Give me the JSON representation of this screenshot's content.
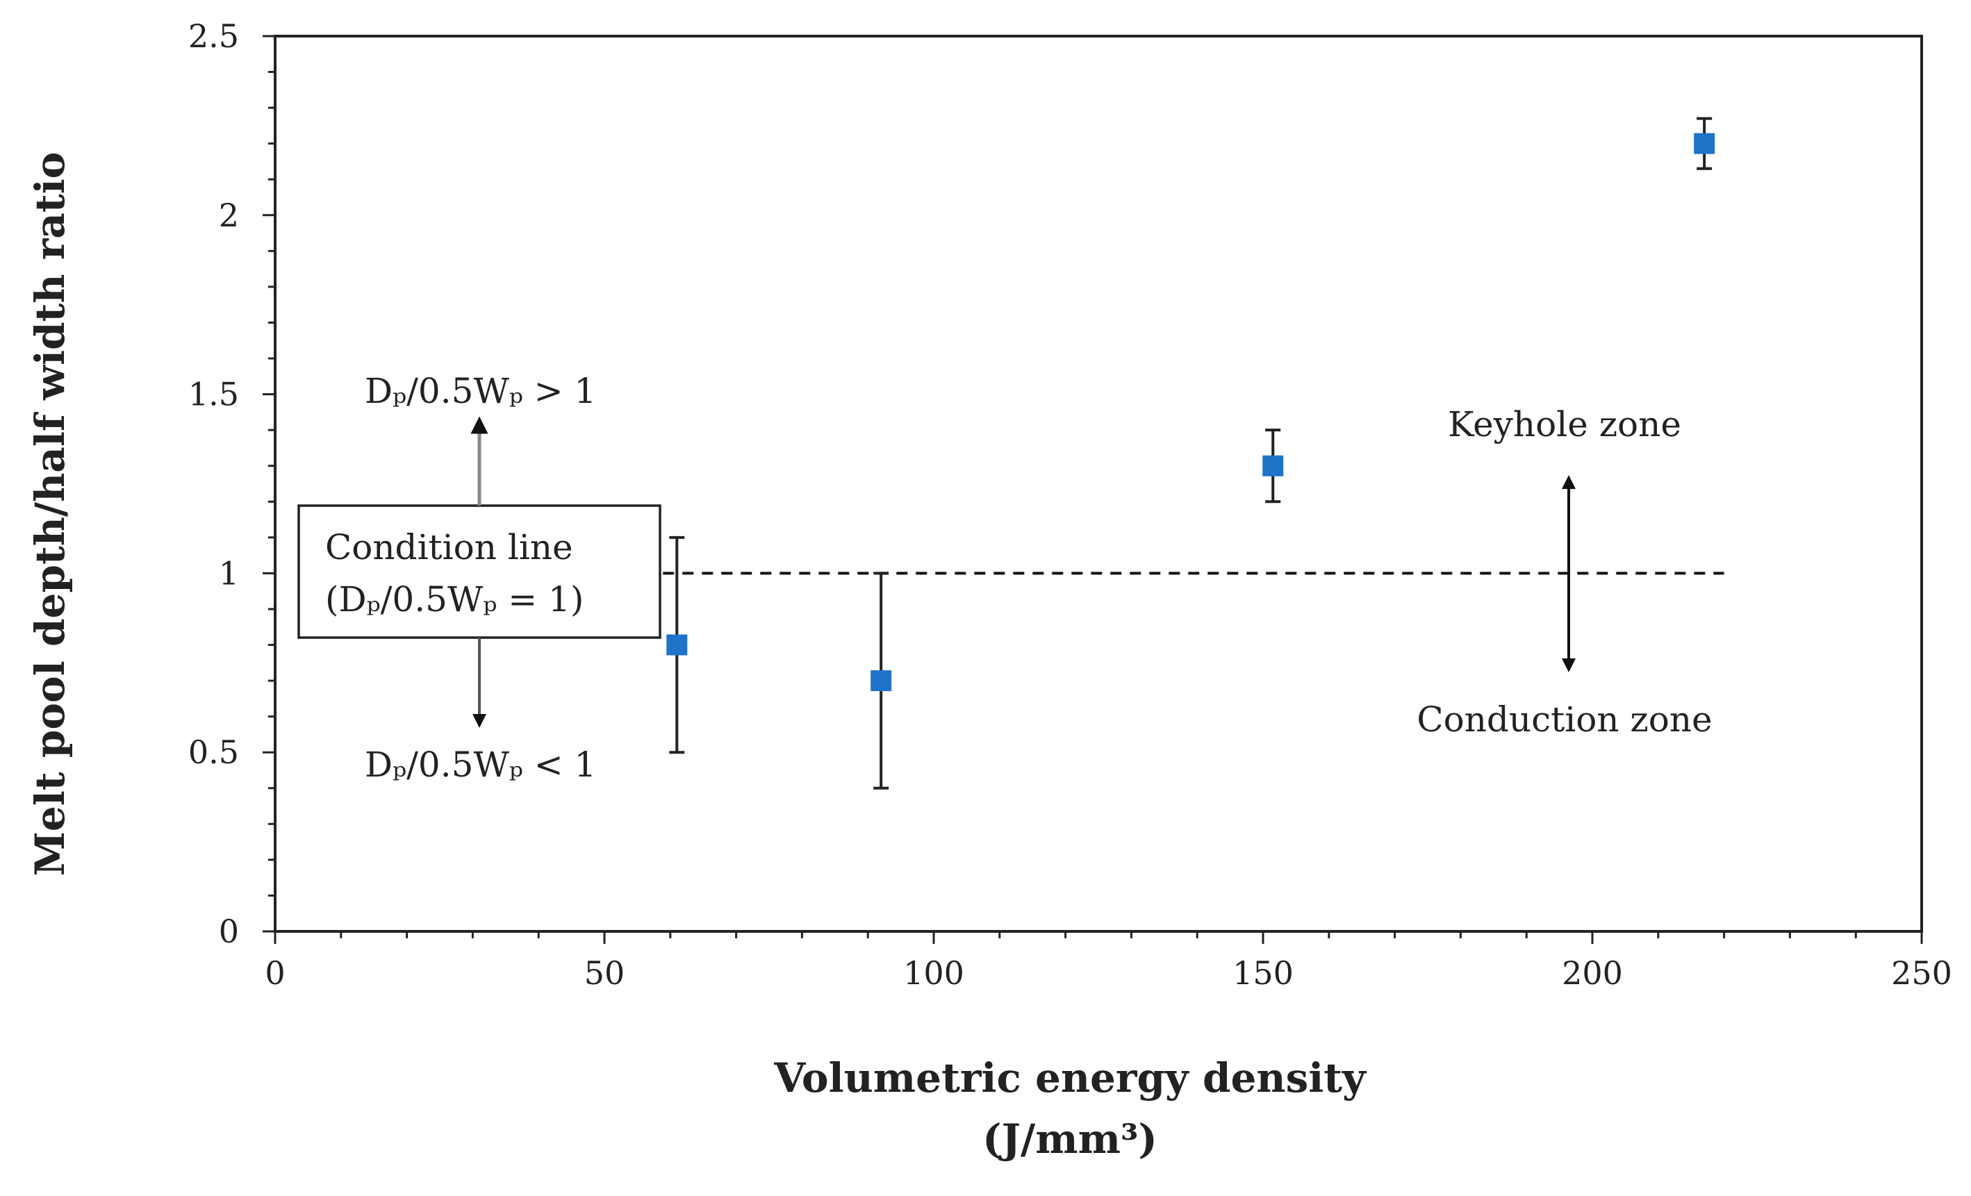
{
  "chart_data": {
    "type": "scatter",
    "title": "",
    "xlabel": "Volumetric energy density",
    "xlabel_unit": "(J/mm³)",
    "ylabel": "Melt pool depth/half width ratio",
    "xlim": [
      0,
      250
    ],
    "ylim": [
      0,
      2.5
    ],
    "xticks": [
      0,
      50,
      100,
      150,
      200,
      250
    ],
    "yticks": [
      0,
      0.5,
      1,
      1.5,
      2,
      2.5
    ],
    "xtick_labels": [
      "0",
      "50",
      "100",
      "150",
      "200",
      "250"
    ],
    "ytick_labels": [
      "0",
      "0.5",
      "1",
      "1.5",
      "2",
      "2.5"
    ],
    "grid": false,
    "series": [
      {
        "name": "Melt pool depth/half width ratio",
        "color": "#1f73c9",
        "points": [
          {
            "x": 61,
            "y": 0.8,
            "err_low": 0.5,
            "err_high": 1.1
          },
          {
            "x": 92,
            "y": 0.7,
            "err_low": 0.4,
            "err_high": 1.0
          },
          {
            "x": 151.5,
            "y": 1.3,
            "err_low": 1.2,
            "err_high": 1.4
          },
          {
            "x": 217,
            "y": 2.2,
            "err_low": 2.13,
            "err_high": 2.27
          }
        ]
      }
    ],
    "condition_line": {
      "y": 1.0,
      "x_start": 61,
      "x_end": 220,
      "style": "dashed"
    },
    "annotations": {
      "condition_box_line1": "Condition line",
      "condition_box_line2": "(Dₚ/0.5Wₚ = 1)",
      "above_label": "Dₚ/0.5Wₚ > 1",
      "below_label": "Dₚ/0.5Wₚ < 1",
      "keyhole_zone": "Keyhole zone",
      "conduction_zone": "Conduction zone"
    }
  }
}
